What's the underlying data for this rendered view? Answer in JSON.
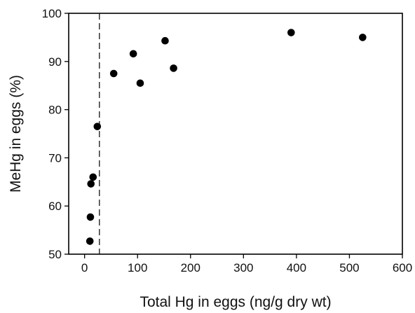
{
  "chart_data": {
    "type": "scatter",
    "title": "",
    "xlabel": "Total Hg in eggs (ng/g dry wt)",
    "ylabel": "MeHg in eggs (%)",
    "xlim": [
      -30,
      600
    ],
    "ylim": [
      50,
      100
    ],
    "x_ticks": [
      0,
      100,
      200,
      300,
      400,
      500,
      600
    ],
    "x_tick_labels": [
      "0",
      "100",
      "200",
      "300",
      "400",
      "500",
      "600"
    ],
    "y_ticks": [
      50,
      60,
      70,
      80,
      90,
      100
    ],
    "y_tick_labels": [
      "50",
      "60",
      "70",
      "80",
      "90",
      "100"
    ],
    "grid": false,
    "reference_lines": [
      {
        "orientation": "vertical",
        "x": 28,
        "style": "dashed"
      }
    ],
    "series": [
      {
        "marker": "filled-circle",
        "color": "#000000",
        "points": [
          {
            "x": 10,
            "y": 52.7
          },
          {
            "x": 11,
            "y": 57.7
          },
          {
            "x": 12,
            "y": 64.6
          },
          {
            "x": 16,
            "y": 66.0
          },
          {
            "x": 24,
            "y": 76.5
          },
          {
            "x": 55,
            "y": 87.5
          },
          {
            "x": 92,
            "y": 91.6
          },
          {
            "x": 105,
            "y": 85.5
          },
          {
            "x": 152,
            "y": 94.3
          },
          {
            "x": 168,
            "y": 88.6
          },
          {
            "x": 390,
            "y": 96.0
          },
          {
            "x": 525,
            "y": 95.0
          }
        ]
      }
    ]
  }
}
